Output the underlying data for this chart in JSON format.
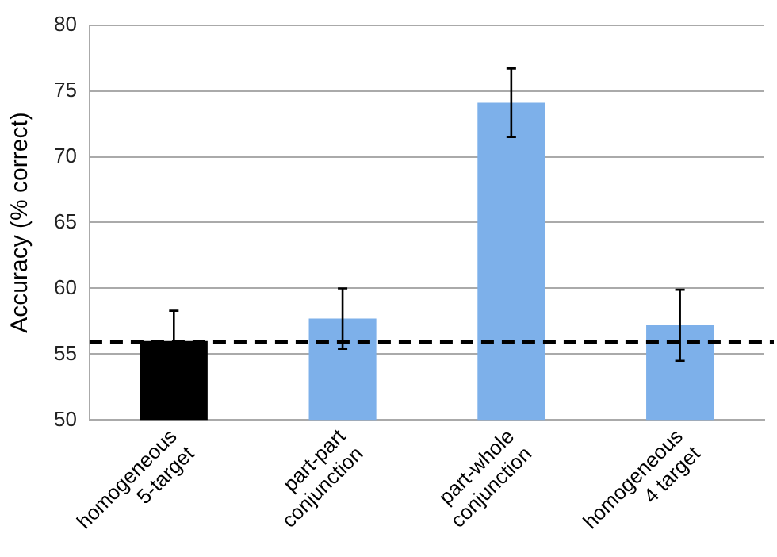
{
  "chart_data": {
    "type": "bar",
    "categories": [
      "homogeneous\n5-target",
      "part-part\nconjunction",
      "part-whole\nconjunction",
      "homogeneous\n4 target"
    ],
    "values": [
      56.0,
      57.7,
      74.1,
      57.2
    ],
    "errors": [
      2.3,
      2.3,
      2.6,
      2.7
    ],
    "colors": [
      "#000000",
      "#7db0ea",
      "#7db0ea",
      "#7db0ea"
    ],
    "ylabel": "Accuracy (% correct)",
    "ylim": [
      50,
      80
    ],
    "yticks": [
      50,
      55,
      60,
      65,
      70,
      75,
      80
    ],
    "grid": "y",
    "ref_lines": [
      {
        "axis": "y",
        "value": 55.9,
        "color": "#000000",
        "line_style": "dashed"
      }
    ]
  }
}
